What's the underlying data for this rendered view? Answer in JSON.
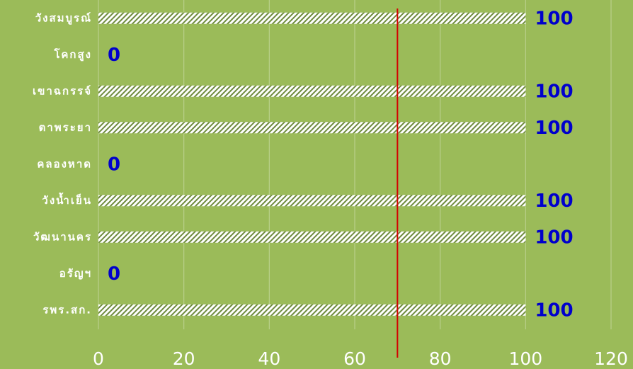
{
  "chart_data": {
    "type": "bar",
    "orientation": "horizontal",
    "categories": [
      "วังสมบูรณ์",
      "โคกสูง",
      "เขาฉกรรจ์",
      "ตาพระยา",
      "คลองหาด",
      "วังน้ำเย็น",
      "วัฒนานคร",
      "อรัญฯ",
      "รพร.สก."
    ],
    "values": [
      100,
      0,
      100,
      100,
      0,
      100,
      100,
      0,
      100
    ],
    "xlim": [
      0,
      120
    ],
    "x_ticks": [
      "0",
      "20",
      "40",
      "60",
      "80",
      "100",
      "120"
    ],
    "target_line": 70,
    "grid": true,
    "colors": {
      "background": "#9bbb59",
      "gridline": "#b9cf8b",
      "bar_stripe": "#ffffff",
      "bar_stripe_alt": "#6e8b3d",
      "target_line": "#d40000",
      "data_label": "#0000cc",
      "text": "#ffffff"
    }
  }
}
